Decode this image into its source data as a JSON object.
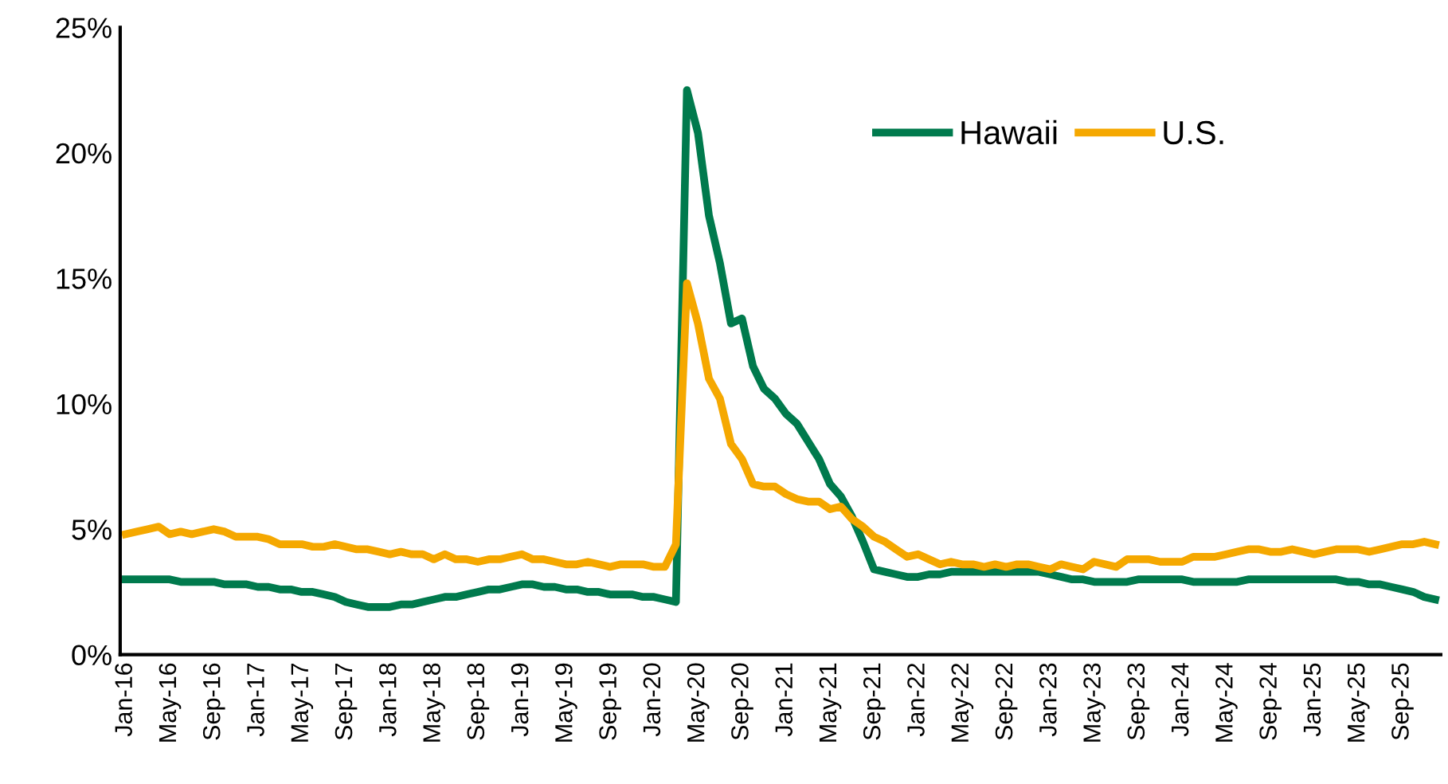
{
  "chart_data": {
    "type": "line",
    "categories": [
      "Jan-16",
      null,
      null,
      null,
      "May-16",
      null,
      null,
      null,
      "Sep-16",
      null,
      null,
      null,
      "Jan-17",
      null,
      null,
      null,
      "May-17",
      null,
      null,
      null,
      "Sep-17",
      null,
      null,
      null,
      "Jan-18",
      null,
      null,
      null,
      "May-18",
      null,
      null,
      null,
      "Sep-18",
      null,
      null,
      null,
      "Jan-19",
      null,
      null,
      null,
      "May-19",
      null,
      null,
      null,
      "Sep-19",
      null,
      null,
      null,
      "Jan-20",
      null,
      null,
      null,
      "May-20",
      null,
      null,
      null,
      "Sep-20",
      null,
      null,
      null,
      "Jan-21",
      null,
      null,
      null,
      "May-21",
      null,
      null,
      null,
      "Sep-21",
      null,
      null,
      null,
      "Jan-22",
      null,
      null,
      null,
      "May-22",
      null,
      null,
      null,
      "Sep-22",
      null,
      null,
      null,
      "Jan-23",
      null,
      null,
      null,
      "May-23",
      null,
      null,
      null,
      "Sep-23",
      null,
      null,
      null,
      "Jan-24",
      null,
      null,
      null,
      "May-24",
      null,
      null,
      null,
      "Sep-24",
      null,
      null,
      null,
      "Jan-25",
      null,
      null,
      null,
      "May-25",
      null,
      null,
      null,
      "Sep-25",
      null,
      null,
      null
    ],
    "series": [
      {
        "name": "Hawaii",
        "color": "#007a4d",
        "values": [
          3.0,
          3.0,
          3.0,
          3.0,
          3.0,
          2.9,
          2.9,
          2.9,
          2.9,
          2.8,
          2.8,
          2.8,
          2.7,
          2.7,
          2.6,
          2.6,
          2.5,
          2.5,
          2.4,
          2.3,
          2.1,
          2.0,
          1.9,
          1.9,
          1.9,
          2.0,
          2.0,
          2.1,
          2.2,
          2.3,
          2.3,
          2.4,
          2.5,
          2.6,
          2.6,
          2.7,
          2.8,
          2.8,
          2.7,
          2.7,
          2.6,
          2.6,
          2.5,
          2.5,
          2.4,
          2.4,
          2.4,
          2.3,
          2.3,
          2.2,
          2.1,
          22.5,
          20.8,
          17.5,
          15.6,
          13.2,
          13.4,
          11.5,
          10.6,
          10.2,
          9.6,
          9.2,
          8.5,
          7.8,
          6.8,
          6.3,
          5.5,
          4.5,
          3.4,
          3.3,
          3.2,
          3.1,
          3.1,
          3.2,
          3.2,
          3.3,
          3.3,
          3.3,
          3.3,
          3.3,
          3.3,
          3.3,
          3.3,
          3.3,
          3.2,
          3.1,
          3.0,
          3.0,
          2.9,
          2.9,
          2.9,
          2.9,
          3.0,
          3.0,
          3.0,
          3.0,
          3.0,
          2.9,
          2.9,
          2.9,
          2.9,
          2.9,
          3.0,
          3.0,
          3.0,
          3.0,
          3.0,
          3.0,
          3.0,
          3.0,
          3.0,
          2.9,
          2.9,
          2.8,
          2.8,
          2.7,
          2.6,
          2.5,
          2.3,
          2.2
        ]
      },
      {
        "name": "U.S.",
        "color": "#f5a800",
        "values": [
          4.8,
          4.9,
          5.0,
          5.1,
          4.8,
          4.9,
          4.8,
          4.9,
          5.0,
          4.9,
          4.7,
          4.7,
          4.7,
          4.6,
          4.4,
          4.4,
          4.4,
          4.3,
          4.3,
          4.4,
          4.3,
          4.2,
          4.2,
          4.1,
          4.0,
          4.1,
          4.0,
          4.0,
          3.8,
          4.0,
          3.8,
          3.8,
          3.7,
          3.8,
          3.8,
          3.9,
          4.0,
          3.8,
          3.8,
          3.7,
          3.6,
          3.6,
          3.7,
          3.6,
          3.5,
          3.6,
          3.6,
          3.6,
          3.5,
          3.5,
          4.4,
          14.8,
          13.2,
          11.0,
          10.2,
          8.4,
          7.8,
          6.8,
          6.7,
          6.7,
          6.4,
          6.2,
          6.1,
          6.1,
          5.8,
          5.9,
          5.4,
          5.1,
          4.7,
          4.5,
          4.2,
          3.9,
          4.0,
          3.8,
          3.6,
          3.7,
          3.6,
          3.6,
          3.5,
          3.6,
          3.5,
          3.6,
          3.6,
          3.5,
          3.4,
          3.6,
          3.5,
          3.4,
          3.7,
          3.6,
          3.5,
          3.8,
          3.8,
          3.8,
          3.7,
          3.7,
          3.7,
          3.9,
          3.9,
          3.9,
          4.0,
          4.1,
          4.2,
          4.2,
          4.1,
          4.1,
          4.2,
          4.1,
          4.0,
          4.1,
          4.2,
          4.2,
          4.2,
          4.1,
          4.2,
          4.3,
          4.4,
          4.4,
          4.5,
          4.4
        ]
      }
    ],
    "ylim": [
      0,
      25
    ],
    "yticks": [
      {
        "value": 0,
        "label": "0%"
      },
      {
        "value": 5,
        "label": "5%"
      },
      {
        "value": 10,
        "label": "10%"
      },
      {
        "value": 15,
        "label": "15%"
      },
      {
        "value": 20,
        "label": "20%"
      },
      {
        "value": 25,
        "label": "25%"
      }
    ],
    "legend": "top right",
    "grid": false,
    "marker": "none",
    "line_style": "solid"
  }
}
